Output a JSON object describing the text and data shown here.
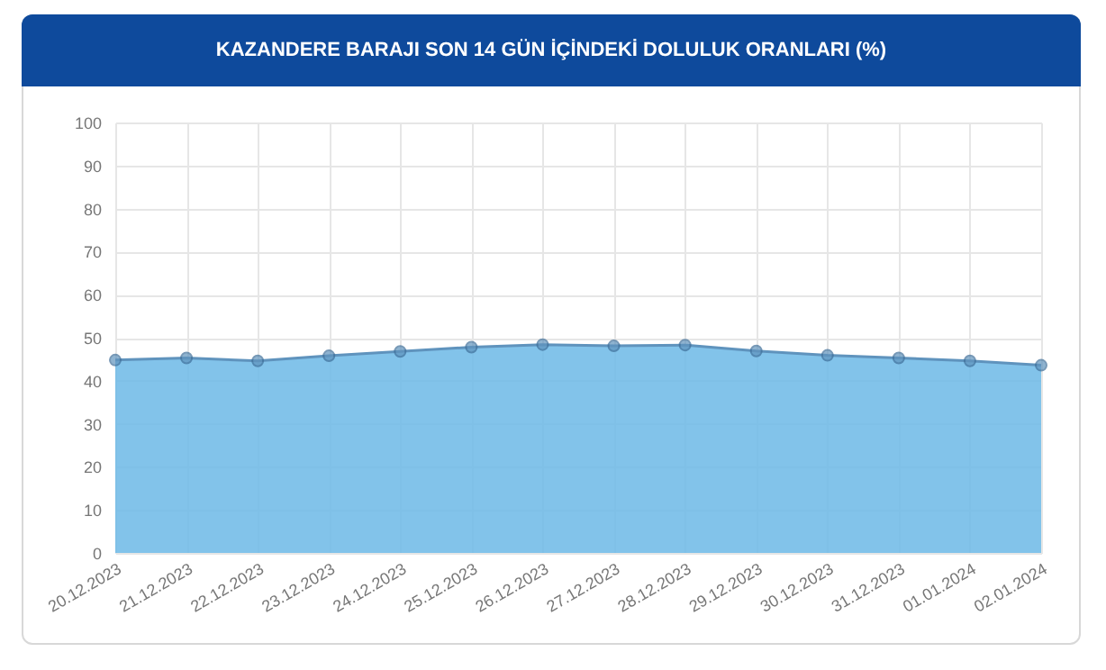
{
  "chart_data": {
    "type": "area",
    "title": "KAZANDERE BARAJI SON 14 GÜN İÇİNDEKİ DOLULUK ORANLARI (%)",
    "categories": [
      "20.12.2023",
      "21.12.2023",
      "22.12.2023",
      "23.12.2023",
      "24.12.2023",
      "25.12.2023",
      "26.12.2023",
      "27.12.2023",
      "28.12.2023",
      "29.12.2023",
      "30.12.2023",
      "31.12.2023",
      "01.01.2024",
      "02.01.2024"
    ],
    "series": [
      {
        "color": "#6cb8e6",
        "values": [
          44.8,
          45.3,
          44.6,
          45.8,
          46.8,
          47.8,
          48.4,
          48.1,
          48.3,
          46.9,
          45.9,
          45.3,
          44.6,
          43.6
        ]
      }
    ],
    "ylim": [
      0,
      100
    ],
    "yticks": [
      0,
      10,
      20,
      30,
      40,
      50,
      60,
      70,
      80,
      90,
      100
    ],
    "grid": true,
    "marker": "circle"
  }
}
